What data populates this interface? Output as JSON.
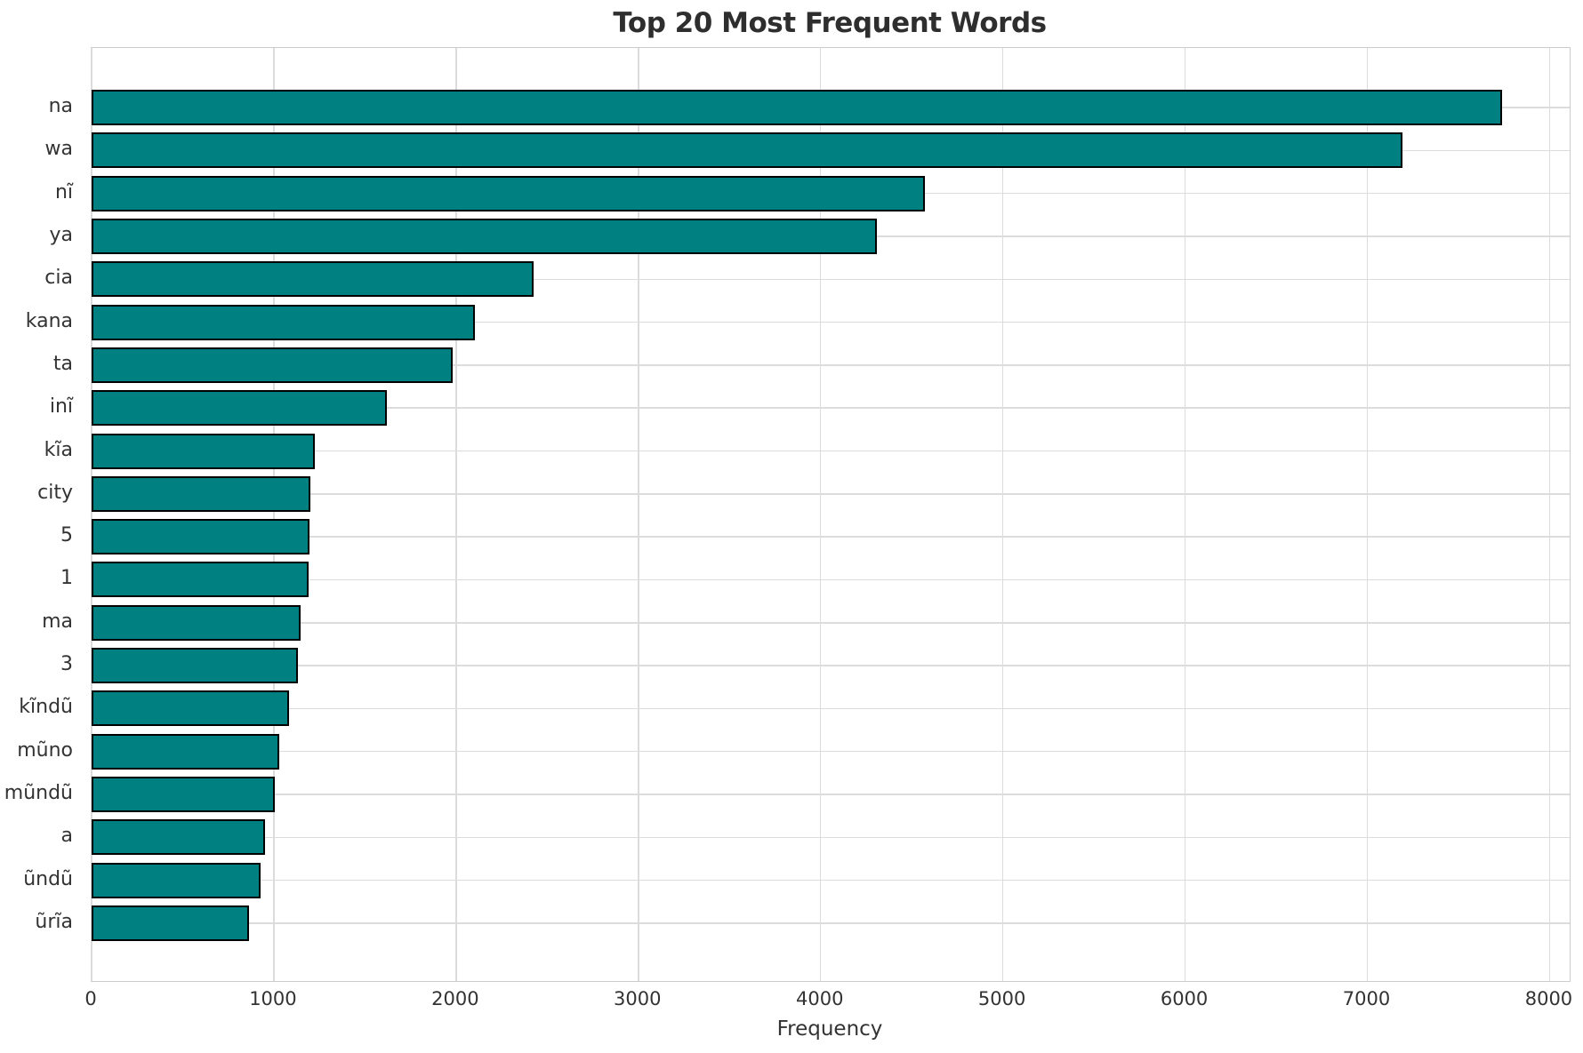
{
  "chart_data": {
    "type": "bar",
    "orientation": "horizontal",
    "title": "Top 20 Most Frequent Words",
    "xlabel": "Frequency",
    "ylabel": "",
    "categories": [
      "na",
      "wa",
      "nĩ",
      "ya",
      "cia",
      "kana",
      "ta",
      "inĩ",
      "kĩa",
      "city",
      "5",
      "1",
      "ma",
      "3",
      "kĩndũ",
      "mũno",
      "mũndũ",
      "a",
      "ũndũ",
      "ũrĩa"
    ],
    "values": [
      7740,
      7195,
      4570,
      4310,
      2425,
      2105,
      1980,
      1620,
      1225,
      1200,
      1195,
      1190,
      1145,
      1130,
      1085,
      1030,
      1005,
      950,
      925,
      865
    ],
    "xlim": [
      0,
      8110
    ],
    "xticks": [
      0,
      1000,
      2000,
      3000,
      4000,
      5000,
      6000,
      7000,
      8000
    ],
    "xtick_labels": [
      "0",
      "1000",
      "2000",
      "3000",
      "4000",
      "5000",
      "6000",
      "7000",
      "8000"
    ],
    "grid": true,
    "legend": false,
    "bar_color": "#008080",
    "bar_edge_color": "#000000",
    "grid_color": "#dcdcdc",
    "spine_color": "#cccccc",
    "text_color": "#333333",
    "title_color": "#2e2e2e"
  }
}
